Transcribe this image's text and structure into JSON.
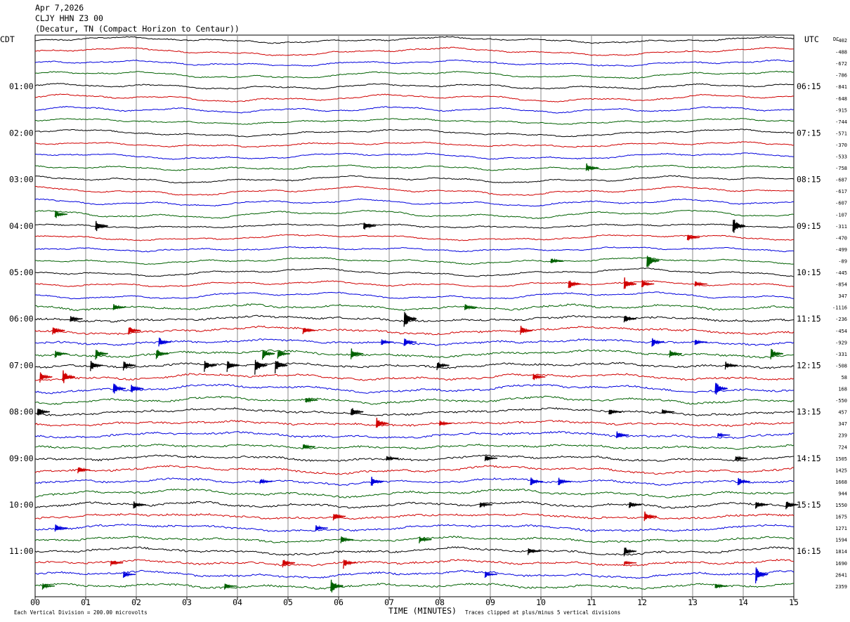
{
  "header": {
    "line1": "Apr 7,2026",
    "line2": "CLJY HHN Z3 00",
    "line3": "(Decatur, TN (Compact Horizon to Centaur))"
  },
  "left_tz": "CDT",
  "right_tz": "UTC",
  "dc_label": "DC",
  "footer": {
    "left": "Each Vertical Division =  200.00 microvolts",
    "center": "TIME (MINUTES)",
    "right": "Traces clipped at plus/minus 5 vertical divisions"
  },
  "colors": {
    "black": "#000000",
    "red": "#d00000",
    "blue": "#0000dd",
    "green": "#006000",
    "grid": "#8a8a8a"
  },
  "chart_data": {
    "type": "line",
    "title": "CLJY HHN Z3 00",
    "xlabel": "TIME (MINUTES)",
    "xlim": [
      0,
      15
    ],
    "x_ticks": [
      "00",
      "01",
      "02",
      "03",
      "04",
      "05",
      "06",
      "07",
      "08",
      "09",
      "10",
      "11",
      "12",
      "13",
      "14",
      "15"
    ],
    "left_time_labels": [
      "01:00",
      "02:00",
      "03:00",
      "04:00",
      "05:00",
      "06:00",
      "07:00",
      "08:00",
      "09:00",
      "10:00",
      "11:00"
    ],
    "right_time_labels": [
      "06:15",
      "07:15",
      "08:15",
      "09:15",
      "10:15",
      "11:15",
      "12:15",
      "13:15",
      "14:15",
      "15:15",
      "16:15"
    ],
    "trace_color_cycle": [
      "black",
      "red",
      "blue",
      "green"
    ],
    "dc_offsets": [
      "-402",
      "-488",
      "-672",
      "-786",
      "-841",
      "-648",
      "-915",
      "-744",
      "-571",
      "-370",
      "-533",
      "-758",
      "-687",
      "-617",
      "-607",
      "-107",
      "-311",
      "-470",
      "-499",
      "-89",
      "-445",
      "-854",
      "347",
      "-1116",
      "-236",
      "-454",
      "-929",
      "-331",
      "-508",
      "58",
      "168",
      "-550",
      "457",
      "347",
      "239",
      "724",
      "1505",
      "1425",
      "1668",
      "944",
      "1550",
      "1675",
      "1271",
      "1594",
      "1814",
      "1690",
      "2641",
      "2359"
    ],
    "trace_minutes": 15,
    "events": [
      {
        "trace": 11,
        "minute": 10.95,
        "amp": 8
      },
      {
        "trace": 15,
        "minute": 0.45,
        "amp": 7
      },
      {
        "trace": 16,
        "minute": 1.25,
        "amp": 10
      },
      {
        "trace": 16,
        "minute": 6.55,
        "amp": 7
      },
      {
        "trace": 16,
        "minute": 13.85,
        "amp": 14
      },
      {
        "trace": 17,
        "minute": 12.95,
        "amp": 6
      },
      {
        "trace": 19,
        "minute": 10.25,
        "amp": 5
      },
      {
        "trace": 19,
        "minute": 12.15,
        "amp": 14
      },
      {
        "trace": 21,
        "minute": 10.6,
        "amp": 9
      },
      {
        "trace": 21,
        "minute": 11.7,
        "amp": 11
      },
      {
        "trace": 21,
        "minute": 12.05,
        "amp": 7
      },
      {
        "trace": 21,
        "minute": 13.1,
        "amp": 5
      },
      {
        "trace": 23,
        "minute": 1.6,
        "amp": 6
      },
      {
        "trace": 23,
        "minute": 8.55,
        "amp": 6
      },
      {
        "trace": 24,
        "minute": 0.75,
        "amp": 6
      },
      {
        "trace": 24,
        "minute": 7.35,
        "amp": 16
      },
      {
        "trace": 24,
        "minute": 11.7,
        "amp": 7
      },
      {
        "trace": 25,
        "minute": 0.4,
        "amp": 8
      },
      {
        "trace": 25,
        "minute": 1.9,
        "amp": 8
      },
      {
        "trace": 25,
        "minute": 5.35,
        "amp": 7
      },
      {
        "trace": 25,
        "minute": 9.65,
        "amp": 8
      },
      {
        "trace": 26,
        "minute": 2.5,
        "amp": 8
      },
      {
        "trace": 26,
        "minute": 6.9,
        "amp": 5
      },
      {
        "trace": 26,
        "minute": 7.35,
        "amp": 7
      },
      {
        "trace": 26,
        "minute": 12.25,
        "amp": 8
      },
      {
        "trace": 26,
        "minute": 13.1,
        "amp": 5
      },
      {
        "trace": 27,
        "minute": 0.45,
        "amp": 7
      },
      {
        "trace": 27,
        "minute": 1.25,
        "amp": 10
      },
      {
        "trace": 27,
        "minute": 2.45,
        "amp": 9
      },
      {
        "trace": 27,
        "minute": 4.55,
        "amp": 10
      },
      {
        "trace": 27,
        "minute": 4.85,
        "amp": 8
      },
      {
        "trace": 27,
        "minute": 6.3,
        "amp": 9
      },
      {
        "trace": 27,
        "minute": 12.6,
        "amp": 6
      },
      {
        "trace": 27,
        "minute": 14.6,
        "amp": 9
      },
      {
        "trace": 28,
        "minute": 1.15,
        "amp": 9
      },
      {
        "trace": 28,
        "minute": 1.8,
        "amp": 8
      },
      {
        "trace": 28,
        "minute": 3.4,
        "amp": 10
      },
      {
        "trace": 28,
        "minute": 3.85,
        "amp": 10
      },
      {
        "trace": 28,
        "minute": 4.4,
        "amp": 14
      },
      {
        "trace": 28,
        "minute": 4.8,
        "amp": 12
      },
      {
        "trace": 28,
        "minute": 8.0,
        "amp": 7
      },
      {
        "trace": 28,
        "minute": 13.7,
        "amp": 6
      },
      {
        "trace": 29,
        "minute": 0.15,
        "amp": 8
      },
      {
        "trace": 29,
        "minute": 0.6,
        "amp": 12
      },
      {
        "trace": 29,
        "minute": 9.9,
        "amp": 6
      },
      {
        "trace": 30,
        "minute": 1.6,
        "amp": 10
      },
      {
        "trace": 30,
        "minute": 1.95,
        "amp": 8
      },
      {
        "trace": 30,
        "minute": 13.5,
        "amp": 13
      },
      {
        "trace": 31,
        "minute": 5.4,
        "amp": 5
      },
      {
        "trace": 32,
        "minute": 0.1,
        "amp": 8
      },
      {
        "trace": 32,
        "minute": 6.3,
        "amp": 8
      },
      {
        "trace": 32,
        "minute": 11.4,
        "amp": 6
      },
      {
        "trace": 32,
        "minute": 12.45,
        "amp": 4
      },
      {
        "trace": 33,
        "minute": 6.8,
        "amp": 10
      },
      {
        "trace": 33,
        "minute": 8.05,
        "amp": 5
      },
      {
        "trace": 34,
        "minute": 11.55,
        "amp": 7
      },
      {
        "trace": 34,
        "minute": 13.55,
        "amp": 4
      },
      {
        "trace": 35,
        "minute": 5.35,
        "amp": 5
      },
      {
        "trace": 36,
        "minute": 7.0,
        "amp": 5
      },
      {
        "trace": 36,
        "minute": 8.95,
        "amp": 6
      },
      {
        "trace": 36,
        "minute": 13.9,
        "amp": 5
      },
      {
        "trace": 37,
        "minute": 0.9,
        "amp": 7
      },
      {
        "trace": 38,
        "minute": 4.5,
        "amp": 5
      },
      {
        "trace": 38,
        "minute": 6.7,
        "amp": 8
      },
      {
        "trace": 38,
        "minute": 9.85,
        "amp": 7
      },
      {
        "trace": 38,
        "minute": 10.4,
        "amp": 7
      },
      {
        "trace": 38,
        "minute": 13.95,
        "amp": 7
      },
      {
        "trace": 40,
        "minute": 2.0,
        "amp": 7
      },
      {
        "trace": 40,
        "minute": 8.85,
        "amp": 5
      },
      {
        "trace": 40,
        "minute": 11.8,
        "amp": 6
      },
      {
        "trace": 40,
        "minute": 14.3,
        "amp": 7
      },
      {
        "trace": 40,
        "minute": 14.9,
        "amp": 8
      },
      {
        "trace": 41,
        "minute": 5.95,
        "amp": 7
      },
      {
        "trace": 41,
        "minute": 12.1,
        "amp": 8
      },
      {
        "trace": 42,
        "minute": 0.45,
        "amp": 6
      },
      {
        "trace": 42,
        "minute": 5.6,
        "amp": 5
      },
      {
        "trace": 43,
        "minute": 6.1,
        "amp": 6
      },
      {
        "trace": 43,
        "minute": 7.65,
        "amp": 6
      },
      {
        "trace": 44,
        "minute": 9.8,
        "amp": 6
      },
      {
        "trace": 44,
        "minute": 11.7,
        "amp": 8
      },
      {
        "trace": 45,
        "minute": 1.55,
        "amp": 5
      },
      {
        "trace": 45,
        "minute": 4.95,
        "amp": 7
      },
      {
        "trace": 45,
        "minute": 6.15,
        "amp": 9
      },
      {
        "trace": 45,
        "minute": 11.7,
        "amp": 4
      },
      {
        "trace": 46,
        "minute": 1.8,
        "amp": 5
      },
      {
        "trace": 46,
        "minute": 8.95,
        "amp": 5
      },
      {
        "trace": 46,
        "minute": 14.3,
        "amp": 13
      },
      {
        "trace": 47,
        "minute": 0.2,
        "amp": 5
      },
      {
        "trace": 47,
        "minute": 3.8,
        "amp": 5
      },
      {
        "trace": 47,
        "minute": 5.9,
        "amp": 14
      },
      {
        "trace": 47,
        "minute": 13.5,
        "amp": 5
      }
    ]
  }
}
